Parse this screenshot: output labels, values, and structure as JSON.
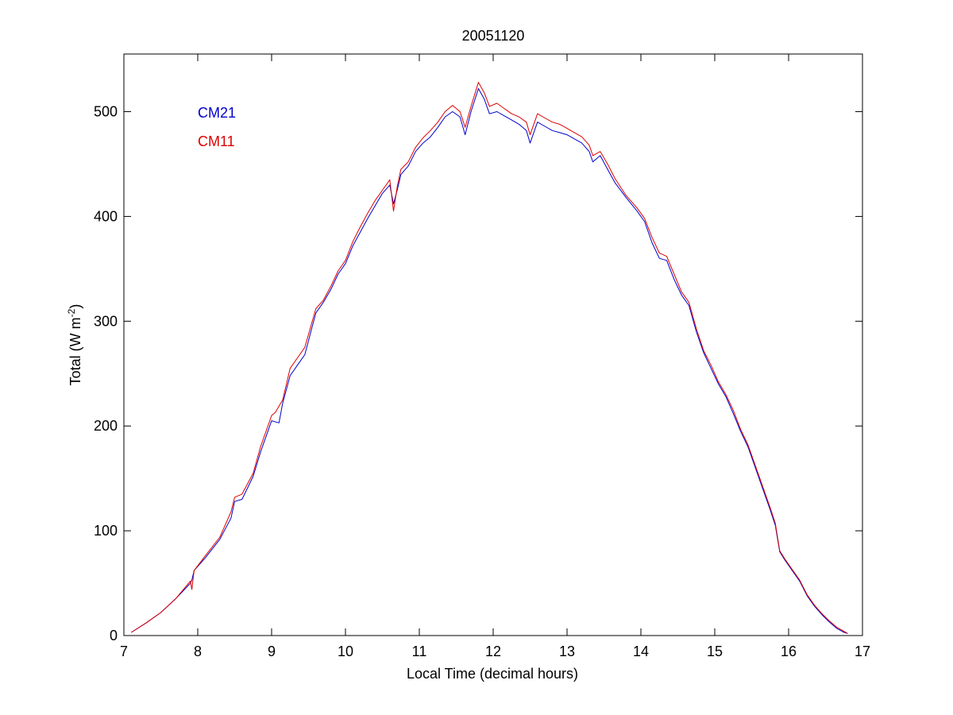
{
  "chart_data": {
    "type": "line",
    "title": "20051120",
    "xlabel": "Local Time (decimal hours)",
    "ylabel_main": "Total (W m",
    "ylabel_sup": "-2",
    "ylabel_close": ")",
    "xlim": [
      7,
      17
    ],
    "ylim": [
      0,
      555
    ],
    "xticks": [
      7,
      8,
      9,
      10,
      11,
      12,
      13,
      14,
      15,
      16,
      17
    ],
    "yticks": [
      0,
      100,
      200,
      300,
      400,
      500
    ],
    "grid": false,
    "legend_position": "top-left",
    "series": [
      {
        "name": "CM21",
        "color": "#0000cc",
        "points": [
          [
            7.1,
            3
          ],
          [
            7.3,
            12
          ],
          [
            7.5,
            22
          ],
          [
            7.7,
            35
          ],
          [
            7.9,
            50
          ],
          [
            7.92,
            53
          ],
          [
            7.95,
            62
          ],
          [
            8.1,
            74
          ],
          [
            8.3,
            92
          ],
          [
            8.45,
            112
          ],
          [
            8.5,
            128
          ],
          [
            8.6,
            130
          ],
          [
            8.75,
            152
          ],
          [
            8.85,
            175
          ],
          [
            9.0,
            205
          ],
          [
            9.1,
            203
          ],
          [
            9.15,
            222
          ],
          [
            9.25,
            248
          ],
          [
            9.35,
            258
          ],
          [
            9.45,
            268
          ],
          [
            9.55,
            295
          ],
          [
            9.6,
            308
          ],
          [
            9.7,
            318
          ],
          [
            9.8,
            330
          ],
          [
            9.9,
            345
          ],
          [
            10.0,
            355
          ],
          [
            10.1,
            372
          ],
          [
            10.2,
            385
          ],
          [
            10.3,
            398
          ],
          [
            10.4,
            410
          ],
          [
            10.5,
            422
          ],
          [
            10.6,
            430
          ],
          [
            10.65,
            412
          ],
          [
            10.7,
            425
          ],
          [
            10.75,
            440
          ],
          [
            10.85,
            448
          ],
          [
            10.95,
            462
          ],
          [
            11.05,
            470
          ],
          [
            11.15,
            476
          ],
          [
            11.25,
            485
          ],
          [
            11.35,
            495
          ],
          [
            11.45,
            500
          ],
          [
            11.55,
            495
          ],
          [
            11.62,
            478
          ],
          [
            11.7,
            500
          ],
          [
            11.8,
            522
          ],
          [
            11.88,
            512
          ],
          [
            11.95,
            498
          ],
          [
            12.05,
            500
          ],
          [
            12.15,
            496
          ],
          [
            12.25,
            492
          ],
          [
            12.35,
            488
          ],
          [
            12.45,
            482
          ],
          [
            12.5,
            470
          ],
          [
            12.6,
            490
          ],
          [
            12.7,
            486
          ],
          [
            12.8,
            482
          ],
          [
            12.9,
            480
          ],
          [
            13.0,
            478
          ],
          [
            13.1,
            474
          ],
          [
            13.2,
            470
          ],
          [
            13.3,
            462
          ],
          [
            13.35,
            452
          ],
          [
            13.45,
            458
          ],
          [
            13.55,
            445
          ],
          [
            13.65,
            432
          ],
          [
            13.8,
            418
          ],
          [
            13.95,
            405
          ],
          [
            14.05,
            395
          ],
          [
            14.15,
            375
          ],
          [
            14.25,
            360
          ],
          [
            14.35,
            358
          ],
          [
            14.45,
            340
          ],
          [
            14.55,
            325
          ],
          [
            14.65,
            315
          ],
          [
            14.75,
            290
          ],
          [
            14.85,
            270
          ],
          [
            14.95,
            255
          ],
          [
            15.05,
            240
          ],
          [
            15.15,
            228
          ],
          [
            15.25,
            212
          ],
          [
            15.35,
            195
          ],
          [
            15.45,
            180
          ],
          [
            15.55,
            160
          ],
          [
            15.65,
            140
          ],
          [
            15.75,
            120
          ],
          [
            15.82,
            105
          ],
          [
            15.88,
            80
          ],
          [
            15.95,
            72
          ],
          [
            16.05,
            62
          ],
          [
            16.15,
            52
          ],
          [
            16.25,
            38
          ],
          [
            16.35,
            28
          ],
          [
            16.45,
            20
          ],
          [
            16.55,
            13
          ],
          [
            16.65,
            7
          ],
          [
            16.75,
            3
          ],
          [
            16.8,
            2
          ]
        ]
      },
      {
        "name": "CM11",
        "color": "#dd0000",
        "points": [
          [
            7.1,
            3
          ],
          [
            7.3,
            12
          ],
          [
            7.5,
            22
          ],
          [
            7.7,
            35
          ],
          [
            7.9,
            52
          ],
          [
            7.92,
            44
          ],
          [
            7.95,
            62
          ],
          [
            8.1,
            76
          ],
          [
            8.3,
            94
          ],
          [
            8.45,
            118
          ],
          [
            8.5,
            132
          ],
          [
            8.6,
            135
          ],
          [
            8.75,
            155
          ],
          [
            8.85,
            180
          ],
          [
            9.0,
            210
          ],
          [
            9.05,
            213
          ],
          [
            9.15,
            225
          ],
          [
            9.25,
            255
          ],
          [
            9.35,
            265
          ],
          [
            9.45,
            275
          ],
          [
            9.55,
            300
          ],
          [
            9.6,
            312
          ],
          [
            9.7,
            320
          ],
          [
            9.8,
            333
          ],
          [
            9.9,
            348
          ],
          [
            10.0,
            358
          ],
          [
            10.1,
            376
          ],
          [
            10.2,
            390
          ],
          [
            10.3,
            403
          ],
          [
            10.4,
            415
          ],
          [
            10.5,
            425
          ],
          [
            10.6,
            435
          ],
          [
            10.65,
            405
          ],
          [
            10.7,
            428
          ],
          [
            10.75,
            445
          ],
          [
            10.85,
            452
          ],
          [
            10.95,
            466
          ],
          [
            11.05,
            475
          ],
          [
            11.15,
            482
          ],
          [
            11.25,
            490
          ],
          [
            11.35,
            500
          ],
          [
            11.45,
            506
          ],
          [
            11.55,
            500
          ],
          [
            11.62,
            485
          ],
          [
            11.7,
            505
          ],
          [
            11.8,
            528
          ],
          [
            11.88,
            518
          ],
          [
            11.95,
            505
          ],
          [
            12.05,
            508
          ],
          [
            12.15,
            503
          ],
          [
            12.25,
            498
          ],
          [
            12.35,
            495
          ],
          [
            12.45,
            490
          ],
          [
            12.5,
            478
          ],
          [
            12.6,
            498
          ],
          [
            12.7,
            494
          ],
          [
            12.8,
            490
          ],
          [
            12.9,
            488
          ],
          [
            13.0,
            484
          ],
          [
            13.1,
            480
          ],
          [
            13.2,
            476
          ],
          [
            13.3,
            468
          ],
          [
            13.35,
            458
          ],
          [
            13.45,
            462
          ],
          [
            13.55,
            450
          ],
          [
            13.65,
            436
          ],
          [
            13.8,
            420
          ],
          [
            13.95,
            408
          ],
          [
            14.05,
            398
          ],
          [
            14.15,
            380
          ],
          [
            14.25,
            365
          ],
          [
            14.35,
            362
          ],
          [
            14.45,
            345
          ],
          [
            14.55,
            328
          ],
          [
            14.65,
            318
          ],
          [
            14.75,
            293
          ],
          [
            14.85,
            272
          ],
          [
            14.95,
            258
          ],
          [
            15.05,
            242
          ],
          [
            15.15,
            230
          ],
          [
            15.25,
            215
          ],
          [
            15.35,
            197
          ],
          [
            15.45,
            182
          ],
          [
            15.55,
            162
          ],
          [
            15.65,
            142
          ],
          [
            15.75,
            122
          ],
          [
            15.82,
            107
          ],
          [
            15.88,
            81
          ],
          [
            15.95,
            73
          ],
          [
            16.05,
            63
          ],
          [
            16.15,
            53
          ],
          [
            16.25,
            39
          ],
          [
            16.35,
            29
          ],
          [
            16.45,
            21
          ],
          [
            16.55,
            14
          ],
          [
            16.65,
            8
          ],
          [
            16.75,
            4
          ],
          [
            16.8,
            2
          ]
        ]
      }
    ]
  }
}
